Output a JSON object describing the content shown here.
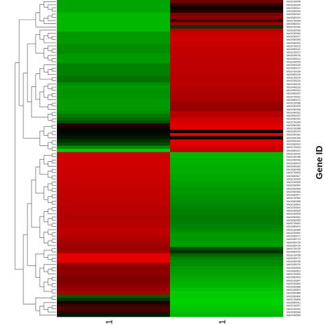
{
  "chart_data": {
    "type": "heatmap",
    "title": "",
    "xlabel": "",
    "ylabel": "Gene ID",
    "columns": [
      "1",
      "1"
    ],
    "color_scale": {
      "low": "#00ff00",
      "mid": "#000000",
      "high": "#ff0000"
    },
    "value_range": [
      -1,
      1
    ],
    "rows": [
      {
        "label": "MsG0180005",
        "values": [
          -0.65,
          0.45
        ]
      },
      {
        "label": "MsG0280004",
        "values": [
          -0.65,
          0.2
        ]
      },
      {
        "label": "MsG0380012",
        "values": [
          -0.65,
          0.05
        ]
      },
      {
        "label": "MsG0480009",
        "values": [
          -0.65,
          0.15
        ]
      },
      {
        "label": "MsG0580021",
        "values": [
          -0.72,
          0.5
        ]
      },
      {
        "label": "MsG0680015",
        "values": [
          -0.72,
          0.55
        ]
      },
      {
        "label": "MsG0780008",
        "values": [
          -0.72,
          0.3
        ]
      },
      {
        "label": "MsG0880031",
        "values": [
          -0.72,
          0.6
        ]
      },
      {
        "label": "MsG0180044",
        "values": [
          -0.72,
          -0.2
        ]
      },
      {
        "label": "MsG0280052",
        "values": [
          -0.72,
          0.7
        ]
      },
      {
        "label": "MsG0380060",
        "values": [
          -0.6,
          0.78
        ]
      },
      {
        "label": "MsG0480077",
        "values": [
          -0.6,
          0.8
        ]
      },
      {
        "label": "MsG0580083",
        "values": [
          -0.6,
          0.8
        ]
      },
      {
        "label": "MsG0680091",
        "values": [
          -0.6,
          0.78
        ]
      },
      {
        "label": "MsG0780102",
        "values": [
          -0.55,
          0.78
        ]
      },
      {
        "label": "MsG0880110",
        "values": [
          -0.55,
          0.76
        ]
      },
      {
        "label": "MsG0180127",
        "values": [
          -0.55,
          0.76
        ]
      },
      {
        "label": "MsG0280134",
        "values": [
          -0.6,
          0.76
        ]
      },
      {
        "label": "MsG0380141",
        "values": [
          -0.6,
          0.75
        ]
      },
      {
        "label": "MsG0480150",
        "values": [
          -0.6,
          0.75
        ]
      },
      {
        "label": "MsG0580166",
        "values": [
          -0.5,
          0.75
        ]
      },
      {
        "label": "MsG0680172",
        "values": [
          -0.5,
          0.74
        ]
      },
      {
        "label": "MsG0780189",
        "values": [
          -0.5,
          0.74
        ]
      },
      {
        "label": "MsG0880195",
        "values": [
          -0.5,
          0.74
        ]
      },
      {
        "label": "MsG0180203",
        "values": [
          -0.45,
          0.72
        ]
      },
      {
        "label": "MsG0280218",
        "values": [
          -0.45,
          0.72
        ]
      },
      {
        "label": "MsG0380226",
        "values": [
          -0.55,
          0.72
        ]
      },
      {
        "label": "MsG0480233",
        "values": [
          -0.6,
          0.7
        ]
      },
      {
        "label": "MsG0580240",
        "values": [
          -0.58,
          0.7
        ]
      },
      {
        "label": "MsG0680257",
        "values": [
          -0.58,
          0.68
        ]
      },
      {
        "label": "MsG0780261",
        "values": [
          -0.58,
          0.68
        ]
      },
      {
        "label": "MsG0880274",
        "values": [
          -0.6,
          0.66
        ]
      },
      {
        "label": "MsG0180288",
        "values": [
          -0.6,
          0.62
        ]
      },
      {
        "label": "MsG0280293",
        "values": [
          -0.6,
          0.6
        ]
      },
      {
        "label": "MsG0380305",
        "values": [
          -0.6,
          0.58
        ]
      },
      {
        "label": "MsG0480312",
        "values": [
          -0.55,
          0.72
        ]
      },
      {
        "label": "MsG0580327",
        "values": [
          -0.48,
          0.7
        ]
      },
      {
        "label": "MsG0680331",
        "values": [
          -0.42,
          0.82
        ]
      },
      {
        "label": "MsG0780346",
        "values": [
          -0.3,
          0.85
        ]
      },
      {
        "label": "MsG0880352",
        "values": [
          0.15,
          0.88
        ]
      },
      {
        "label": "MsG0180368",
        "values": [
          0.05,
          0.88
        ]
      },
      {
        "label": "MsG0280375",
        "values": [
          -0.02,
          0.0
        ]
      },
      {
        "label": "MsG0380381",
        "values": [
          -0.05,
          0.88
        ]
      },
      {
        "label": "MsG0480396",
        "values": [
          -0.1,
          0.0
        ]
      },
      {
        "label": "MsG0580404",
        "values": [
          -0.2,
          0.88
        ]
      },
      {
        "label": "MsG0680419",
        "values": [
          -0.3,
          0.88
        ]
      },
      {
        "label": "MsG0780423",
        "values": [
          -0.55,
          0.8
        ]
      },
      {
        "label": "MsG0880437",
        "values": [
          -0.8,
          0.75
        ]
      },
      {
        "label": "MsG0180442",
        "values": [
          0.8,
          -0.72
        ]
      },
      {
        "label": "MsG0280458",
        "values": [
          0.8,
          -0.72
        ]
      },
      {
        "label": "MsG0380463",
        "values": [
          0.82,
          -0.7
        ]
      },
      {
        "label": "MsG0480479",
        "values": [
          0.82,
          -0.7
        ]
      },
      {
        "label": "MsG0580481",
        "values": [
          0.82,
          -0.68
        ]
      },
      {
        "label": "MsG0680496",
        "values": [
          0.8,
          -0.68
        ]
      },
      {
        "label": "MsG0780502",
        "values": [
          0.8,
          -0.68
        ]
      },
      {
        "label": "MsG0880517",
        "values": [
          0.8,
          -0.66
        ]
      },
      {
        "label": "MsG0180525",
        "values": [
          0.78,
          -0.66
        ]
      },
      {
        "label": "MsG0280539",
        "values": [
          0.78,
          -0.62
        ]
      },
      {
        "label": "MsG0380544",
        "values": [
          0.78,
          -0.62
        ]
      },
      {
        "label": "MsG0480558",
        "values": [
          0.76,
          -0.6
        ]
      },
      {
        "label": "MsG0580563",
        "values": [
          0.76,
          -0.6
        ]
      },
      {
        "label": "MsG0680577",
        "values": [
          0.76,
          -0.58
        ]
      },
      {
        "label": "MsG0780582",
        "values": [
          0.74,
          -0.56
        ]
      },
      {
        "label": "MsG0880598",
        "values": [
          0.74,
          -0.55
        ]
      },
      {
        "label": "MsG0180601",
        "values": [
          0.74,
          -0.55
        ]
      },
      {
        "label": "MsG0280616",
        "values": [
          0.72,
          -0.52
        ]
      },
      {
        "label": "MsG0380624",
        "values": [
          0.72,
          -0.5
        ]
      },
      {
        "label": "MsG0480635",
        "values": [
          0.7,
          -0.5
        ]
      },
      {
        "label": "MsG0580640",
        "values": [
          0.7,
          -0.48
        ]
      },
      {
        "label": "MsG0680655",
        "values": [
          0.7,
          -0.48
        ]
      },
      {
        "label": "MsG0780661",
        "values": [
          0.72,
          -0.5
        ]
      },
      {
        "label": "MsG0880676",
        "values": [
          0.72,
          -0.52
        ]
      },
      {
        "label": "MsG0180684",
        "values": [
          0.74,
          -0.55
        ]
      },
      {
        "label": "MsG0280692",
        "values": [
          0.74,
          -0.58
        ]
      },
      {
        "label": "MsG0380707",
        "values": [
          0.72,
          -0.6
        ]
      },
      {
        "label": "MsG0480713",
        "values": [
          0.68,
          -0.6
        ]
      },
      {
        "label": "MsG0580728",
        "values": [
          0.66,
          -0.62
        ]
      },
      {
        "label": "MsG0680734",
        "values": [
          0.62,
          -0.62
        ]
      },
      {
        "label": "MsG0780749",
        "values": [
          0.6,
          -0.3
        ]
      },
      {
        "label": "MsG0880753",
        "values": [
          0.66,
          -0.2
        ]
      },
      {
        "label": "MsG0180768",
        "values": [
          0.9,
          -0.4
        ]
      },
      {
        "label": "MsG0280772",
        "values": [
          0.9,
          -0.5
        ]
      },
      {
        "label": "MsG0380785",
        "values": [
          0.88,
          -0.55
        ]
      },
      {
        "label": "MsG0480791",
        "values": [
          0.6,
          -0.55
        ]
      },
      {
        "label": "MsG0580806",
        "values": [
          0.55,
          -0.6
        ]
      },
      {
        "label": "MsG0680814",
        "values": [
          0.55,
          -0.62
        ]
      },
      {
        "label": "MsG0780829",
        "values": [
          0.55,
          -0.64
        ]
      },
      {
        "label": "MsG0880833",
        "values": [
          0.5,
          -0.66
        ]
      },
      {
        "label": "MsG0180847",
        "values": [
          0.5,
          -0.68
        ]
      },
      {
        "label": "MsG0280852",
        "values": [
          0.52,
          -0.7
        ]
      },
      {
        "label": "MsG0380868",
        "values": [
          0.55,
          -0.72
        ]
      },
      {
        "label": "MsG0480873",
        "values": [
          0.6,
          -0.76
        ]
      },
      {
        "label": "MsG0580889",
        "values": [
          0.65,
          -0.8
        ]
      },
      {
        "label": "MsG0680894",
        "values": [
          -0.35,
          -0.8
        ]
      },
      {
        "label": "MsG0780906",
        "values": [
          -0.2,
          -0.82
        ]
      },
      {
        "label": "MsG0880911",
        "values": [
          0.1,
          -0.82
        ]
      },
      {
        "label": "MsG0180927",
        "values": [
          0.25,
          -0.8
        ]
      },
      {
        "label": "MsG0280932",
        "values": [
          0.3,
          -0.78
        ]
      },
      {
        "label": "MsG0380948",
        "values": [
          0.2,
          -0.76
        ]
      },
      {
        "label": "MsG0480953",
        "values": [
          -0.1,
          -0.72
        ]
      }
    ]
  }
}
